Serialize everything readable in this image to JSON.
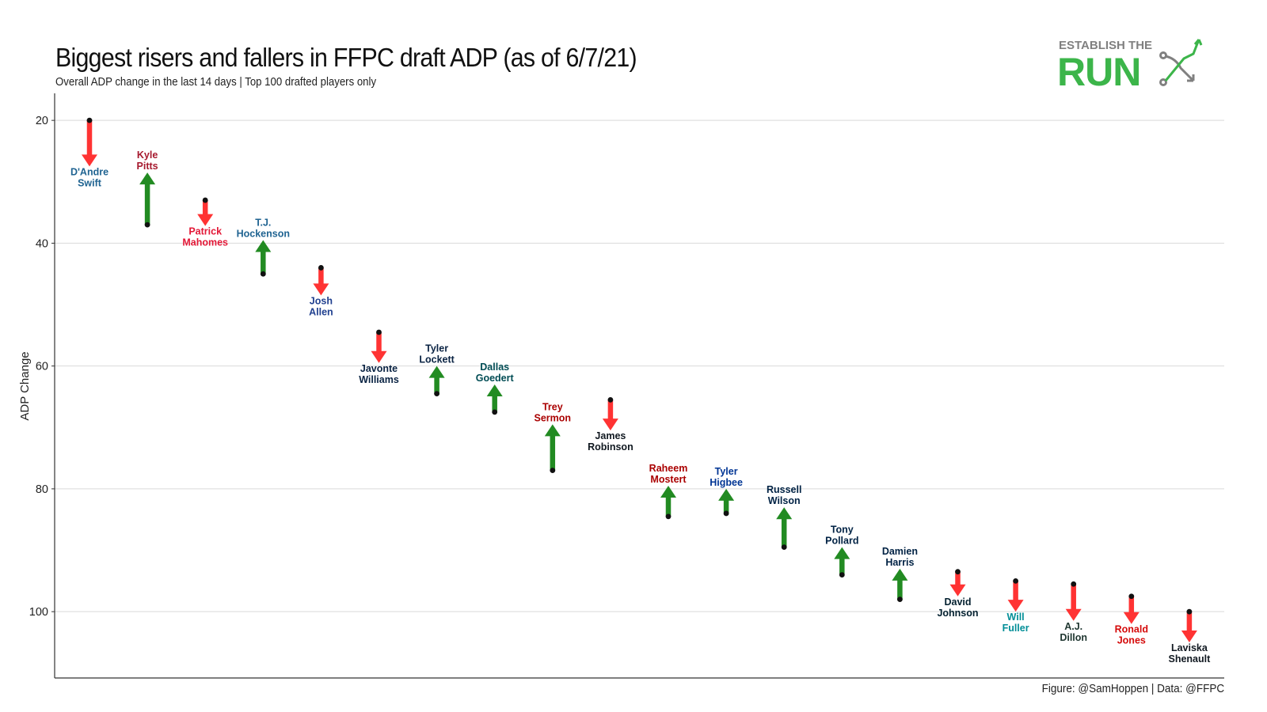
{
  "title": "Biggest risers and fallers in FFPC draft ADP (as of 6/7/21)",
  "subtitle": "Overall ADP change in the last 14 days | Top 100 drafted players only",
  "caption": "Figure: @SamHoppen | Data: @FFPC",
  "logo": {
    "line1": "ESTABLISH THE",
    "line2": "RUN",
    "color": "#3cb54a",
    "arrow_color": "#808080"
  },
  "colors": {
    "riser": "#228b22",
    "faller": "#ff3333",
    "grid": "#d9d9d9",
    "dot": "#111111"
  },
  "chart_data": {
    "type": "arrow",
    "title": "Biggest risers and fallers in FFPC draft ADP (as of 6/7/21)",
    "subtitle": "Overall ADP change in the last 14 days | Top 100 drafted players only",
    "ylabel": "ADP Change",
    "xlabel": "",
    "ylim": [
      110.8,
      15.6
    ],
    "y_reversed": true,
    "yticks": [
      20,
      40,
      60,
      80,
      100
    ],
    "grid": true,
    "players": [
      {
        "line1": "D'Andre",
        "line2": "Swift",
        "from": 20.0,
        "to": 27.5,
        "label_color": "#1f6391"
      },
      {
        "line1": "Kyle",
        "line2": "Pitts",
        "from": 37.0,
        "to": 28.5,
        "label_color": "#a6192e"
      },
      {
        "line1": "Patrick",
        "line2": "Mahomes",
        "from": 33.0,
        "to": 37.2,
        "label_color": "#e31837"
      },
      {
        "line1": "T.J.",
        "line2": "Hockenson",
        "from": 45.0,
        "to": 39.5,
        "label_color": "#1f6391"
      },
      {
        "line1": "Josh",
        "line2": "Allen",
        "from": 44.0,
        "to": 48.5,
        "label_color": "#1f3f8f"
      },
      {
        "line1": "Javonte",
        "line2": "Williams",
        "from": 54.5,
        "to": 59.5,
        "label_color": "#0a2343"
      },
      {
        "line1": "Tyler",
        "line2": "Lockett",
        "from": 64.5,
        "to": 60.0,
        "label_color": "#0a2343"
      },
      {
        "line1": "Dallas",
        "line2": "Goedert",
        "from": 67.5,
        "to": 63.0,
        "label_color": "#004c54"
      },
      {
        "line1": "Trey",
        "line2": "Sermon",
        "from": 77.0,
        "to": 69.5,
        "label_color": "#aa0000"
      },
      {
        "line1": "James",
        "line2": "Robinson",
        "from": 65.5,
        "to": 70.5,
        "label_color": "#101820"
      },
      {
        "line1": "Raheem",
        "line2": "Mostert",
        "from": 84.5,
        "to": 79.5,
        "label_color": "#aa0000"
      },
      {
        "line1": "Tyler",
        "line2": "Higbee",
        "from": 84.0,
        "to": 80.0,
        "label_color": "#003594"
      },
      {
        "line1": "Russell",
        "line2": "Wilson",
        "from": 89.5,
        "to": 83.0,
        "label_color": "#002244"
      },
      {
        "line1": "Tony",
        "line2": "Pollard",
        "from": 94.0,
        "to": 89.5,
        "label_color": "#002244"
      },
      {
        "line1": "Damien",
        "line2": "Harris",
        "from": 98.0,
        "to": 93.0,
        "label_color": "#002244"
      },
      {
        "line1": "David",
        "line2": "Johnson",
        "from": 93.5,
        "to": 97.5,
        "label_color": "#03202f"
      },
      {
        "line1": "Will",
        "line2": "Fuller",
        "from": 95.0,
        "to": 100.0,
        "label_color": "#008e97"
      },
      {
        "line1": "A.J.",
        "line2": "Dillon",
        "from": 95.5,
        "to": 101.5,
        "label_color": "#203731"
      },
      {
        "line1": "Ronald",
        "line2": "Jones",
        "from": 97.5,
        "to": 102.0,
        "label_color": "#d50a0a"
      },
      {
        "line1": "Laviska",
        "line2": "Shenault",
        "from": 100.0,
        "to": 105.0,
        "label_color": "#101820"
      }
    ]
  }
}
